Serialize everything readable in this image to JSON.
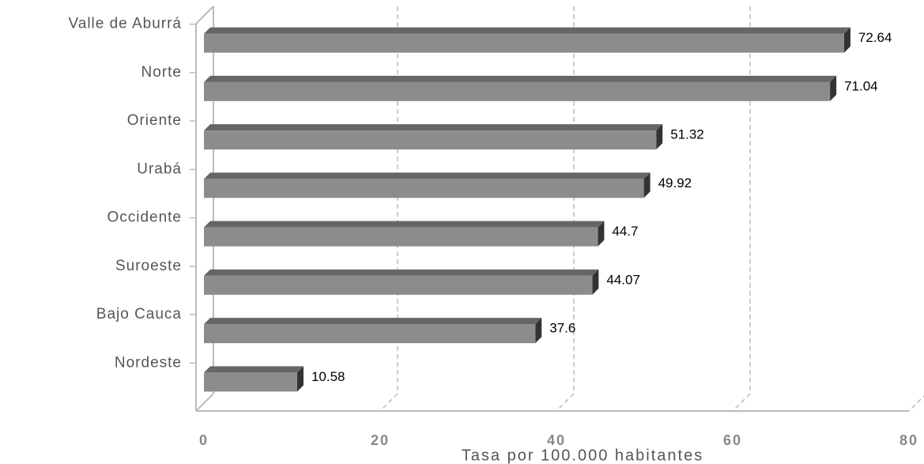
{
  "chart_data": {
    "type": "bar",
    "orientation": "horizontal",
    "x_label": "Tasa por 100.000 habitantes",
    "categories": [
      "Valle de Aburrá",
      "Norte",
      "Oriente",
      "Urabá",
      "Occidente",
      "Suroeste",
      "Bajo Cauca",
      "Nordeste"
    ],
    "values": [
      72.64,
      71.04,
      51.32,
      49.92,
      44.7,
      44.07,
      37.6,
      10.58
    ],
    "color": "#8c8c8c",
    "xlim": [
      0,
      80
    ],
    "xticks": [
      0,
      20,
      40,
      60,
      80
    ],
    "grid": true
  }
}
